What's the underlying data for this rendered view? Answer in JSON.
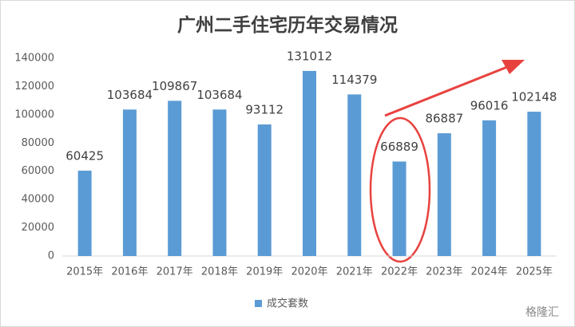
{
  "chart_data": {
    "type": "bar",
    "title": "广州二手住宅历年交易情况",
    "categories": [
      "2015年",
      "2016年",
      "2017年",
      "2018年",
      "2019年",
      "2020年",
      "2021年",
      "2022年",
      "2023年",
      "2024年",
      "2025年"
    ],
    "series": [
      {
        "name": "成交套数",
        "color": "#5b9bd5",
        "values": [
          60425,
          103684,
          109867,
          103684,
          93112,
          131012,
          114379,
          66889,
          86887,
          96016,
          102148
        ]
      }
    ],
    "ylim": [
      0,
      140000
    ],
    "yticks": [
      0,
      20000,
      40000,
      60000,
      80000,
      100000,
      120000,
      140000
    ],
    "grid": false,
    "legend": "bottom"
  },
  "watermark": "格隆汇"
}
